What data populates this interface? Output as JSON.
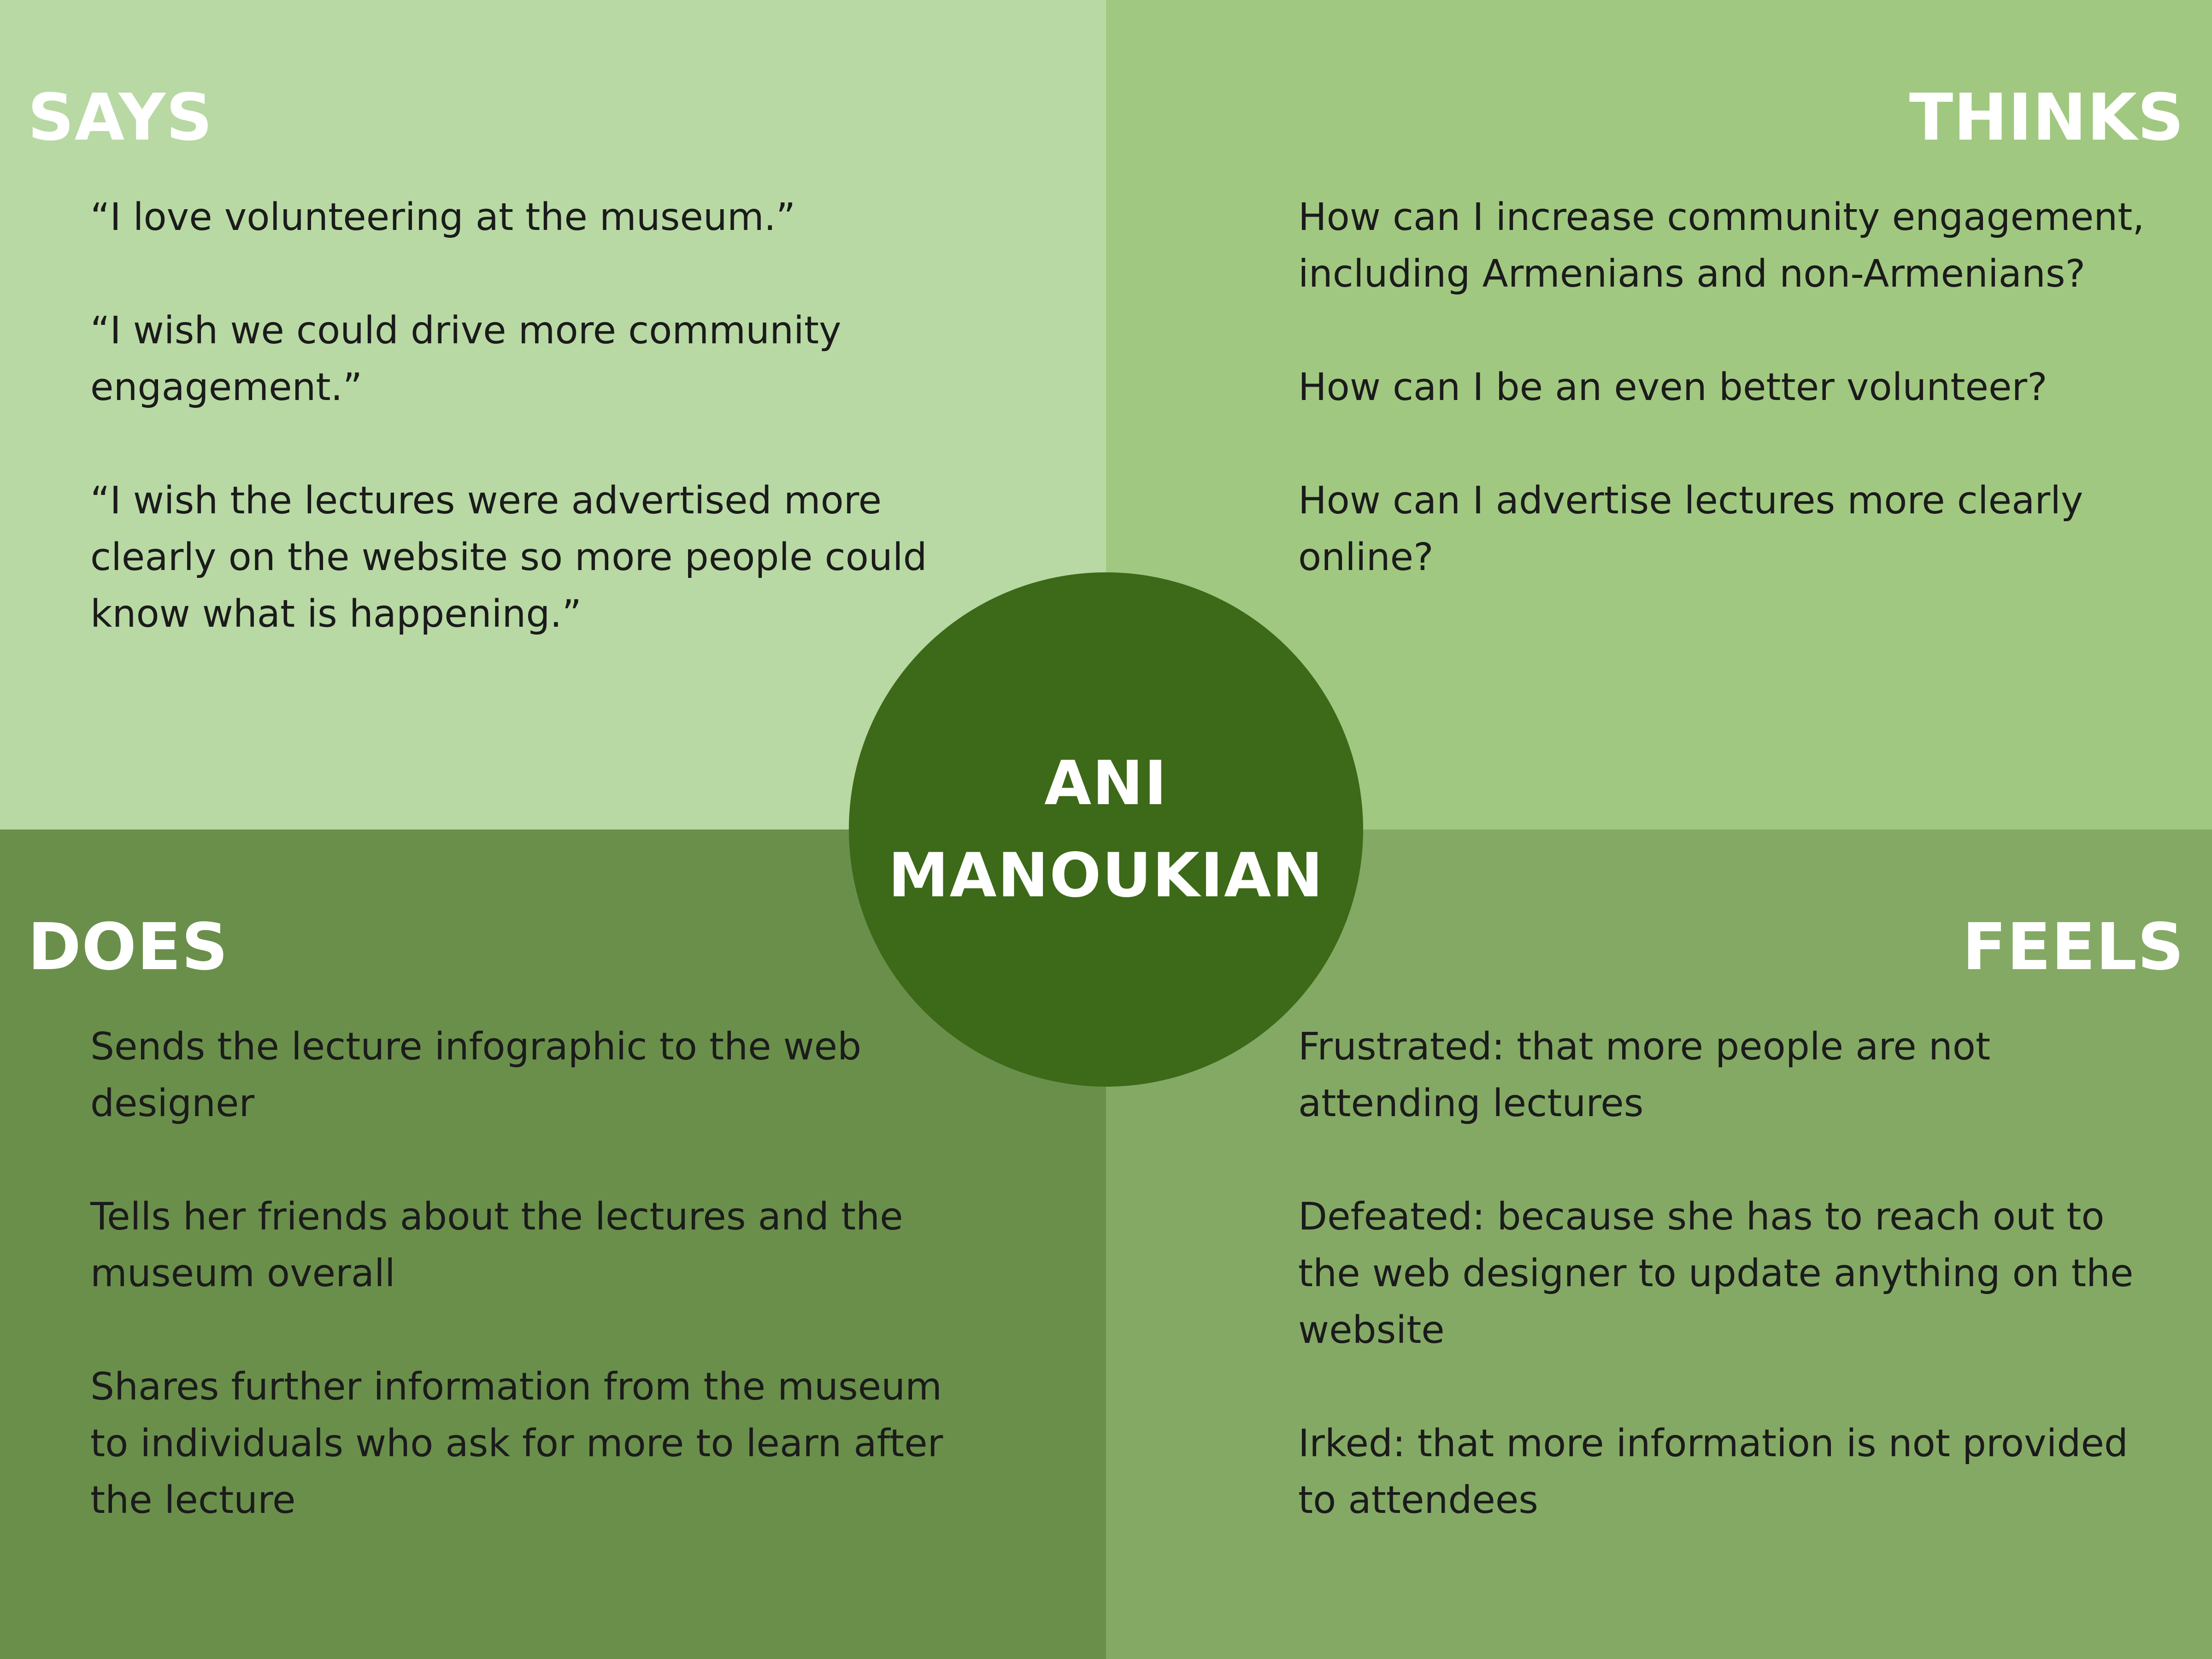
{
  "says": {
    "title": "SAYS",
    "items": [
      "“I love volunteering at the museum.”",
      "“I wish we could drive more community engagement.”",
      "“I wish the lectures were advertised more clearly on the website so more people could know what is happening.”"
    ],
    "color": "#b8d9a3"
  },
  "thinks": {
    "title": "THINKS",
    "items": [
      "How can I increase community engagement, including Armenians and non-Armenians?",
      "How can I be an even better volunteer?",
      "How can I advertise lectures more clearly online?"
    ],
    "color": "#a1c880"
  },
  "does": {
    "title": "DOES",
    "items": [
      "Sends the lecture infographic to the web designer",
      "Tells her friends about the lectures and the museum overall",
      "Shares further information from the museum to individuals who ask for more to learn after the lecture"
    ],
    "color": "#6a8f4b"
  },
  "feels": {
    "title": "FEELS",
    "items": [
      "Frustrated: that more people are not attending lectures",
      "Defeated: because she has to reach out to the web designer to update anything on the website",
      "Irked: that more information is not provided to attendees"
    ],
    "color": "#84a964"
  },
  "persona": {
    "name_line1": "ANI",
    "name_line2": "MANOUKIAN",
    "color": "#3c6a18"
  }
}
